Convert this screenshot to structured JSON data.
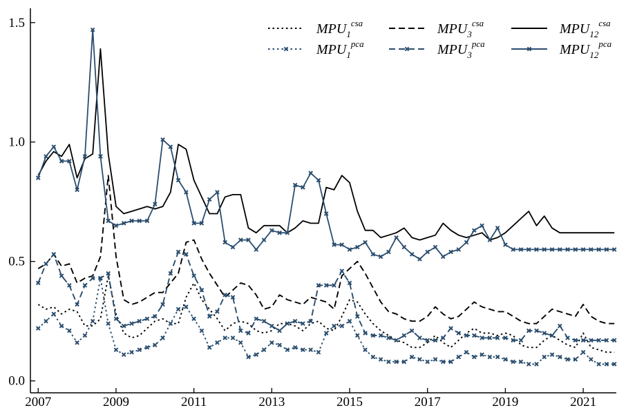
{
  "chart_data": {
    "type": "line",
    "title": "",
    "xlabel": "",
    "ylabel": "",
    "xlim": [
      2006.8,
      2021.85
    ],
    "ylim": [
      -0.05,
      1.56
    ],
    "grid": false,
    "legend_position": "top-right",
    "x_ticks": [
      2007,
      2009,
      2011,
      2013,
      2015,
      2017,
      2019,
      2021
    ],
    "y_ticks": [
      0.0,
      0.5,
      1.0,
      1.5
    ],
    "y_tick_labels": [
      "0.0",
      "0.5",
      "1.0",
      "1.5"
    ],
    "x": [
      2007.0,
      2007.2,
      2007.4,
      2007.6,
      2007.8,
      2008.0,
      2008.2,
      2008.4,
      2008.6,
      2008.8,
      2009.0,
      2009.2,
      2009.4,
      2009.6,
      2009.8,
      2010.0,
      2010.2,
      2010.4,
      2010.6,
      2010.8,
      2011.0,
      2011.2,
      2011.4,
      2011.6,
      2011.8,
      2012.0,
      2012.2,
      2012.4,
      2012.6,
      2012.8,
      2013.0,
      2013.2,
      2013.4,
      2013.6,
      2013.8,
      2014.0,
      2014.2,
      2014.4,
      2014.6,
      2014.8,
      2015.0,
      2015.2,
      2015.4,
      2015.6,
      2015.8,
      2016.0,
      2016.2,
      2016.4,
      2016.6,
      2016.8,
      2017.0,
      2017.2,
      2017.4,
      2017.6,
      2017.8,
      2018.0,
      2018.2,
      2018.4,
      2018.6,
      2018.8,
      2019.0,
      2019.2,
      2019.4,
      2019.6,
      2019.8,
      2020.0,
      2020.2,
      2020.4,
      2020.6,
      2020.8,
      2021.0,
      2021.2,
      2021.4,
      2021.6,
      2021.8
    ],
    "series": [
      {
        "name": "MPU1 csa",
        "symbol": "MPU",
        "sub": "1",
        "sup": "csa",
        "color": "#000000",
        "dash": "2.5,4",
        "marker": false,
        "values": [
          0.32,
          0.3,
          0.31,
          0.28,
          0.3,
          0.29,
          0.23,
          0.23,
          0.26,
          0.44,
          0.28,
          0.2,
          0.18,
          0.19,
          0.22,
          0.25,
          0.26,
          0.24,
          0.24,
          0.35,
          0.41,
          0.34,
          0.3,
          0.26,
          0.21,
          0.24,
          0.25,
          0.24,
          0.21,
          0.2,
          0.21,
          0.24,
          0.24,
          0.23,
          0.21,
          0.24,
          0.25,
          0.22,
          0.21,
          0.27,
          0.34,
          0.33,
          0.28,
          0.24,
          0.21,
          0.19,
          0.17,
          0.16,
          0.14,
          0.14,
          0.16,
          0.19,
          0.16,
          0.14,
          0.17,
          0.2,
          0.22,
          0.2,
          0.2,
          0.19,
          0.2,
          0.19,
          0.15,
          0.14,
          0.14,
          0.17,
          0.19,
          0.17,
          0.15,
          0.14,
          0.2,
          0.14,
          0.13,
          0.12,
          0.12
        ]
      },
      {
        "name": "MPU3 csa",
        "symbol": "MPU",
        "sub": "3",
        "sup": "csa",
        "color": "#000000",
        "dash": "9,5",
        "marker": false,
        "values": [
          0.47,
          0.49,
          0.53,
          0.48,
          0.49,
          0.41,
          0.43,
          0.44,
          0.52,
          0.86,
          0.52,
          0.34,
          0.32,
          0.33,
          0.35,
          0.37,
          0.37,
          0.41,
          0.45,
          0.58,
          0.59,
          0.51,
          0.45,
          0.4,
          0.35,
          0.38,
          0.41,
          0.4,
          0.36,
          0.3,
          0.31,
          0.36,
          0.34,
          0.33,
          0.32,
          0.35,
          0.34,
          0.33,
          0.3,
          0.44,
          0.47,
          0.5,
          0.45,
          0.39,
          0.33,
          0.29,
          0.28,
          0.26,
          0.25,
          0.25,
          0.27,
          0.31,
          0.28,
          0.26,
          0.27,
          0.3,
          0.33,
          0.31,
          0.3,
          0.29,
          0.29,
          0.27,
          0.25,
          0.24,
          0.24,
          0.27,
          0.3,
          0.29,
          0.28,
          0.27,
          0.32,
          0.27,
          0.25,
          0.24,
          0.24
        ]
      },
      {
        "name": "MPU12 csa",
        "symbol": "MPU",
        "sub": "12",
        "sup": "csa",
        "color": "#000000",
        "dash": "",
        "marker": false,
        "values": [
          0.86,
          0.92,
          0.96,
          0.94,
          0.99,
          0.85,
          0.93,
          0.95,
          1.39,
          0.95,
          0.73,
          0.7,
          0.71,
          0.72,
          0.73,
          0.72,
          0.73,
          0.79,
          0.99,
          0.97,
          0.84,
          0.77,
          0.7,
          0.7,
          0.77,
          0.78,
          0.78,
          0.64,
          0.62,
          0.65,
          0.65,
          0.65,
          0.62,
          0.64,
          0.67,
          0.66,
          0.66,
          0.81,
          0.8,
          0.86,
          0.83,
          0.71,
          0.63,
          0.63,
          0.6,
          0.61,
          0.62,
          0.64,
          0.6,
          0.59,
          0.6,
          0.61,
          0.66,
          0.63,
          0.61,
          0.6,
          0.61,
          0.62,
          0.59,
          0.6,
          0.62,
          0.65,
          0.68,
          0.71,
          0.65,
          0.69,
          0.64,
          0.62,
          0.62,
          0.62,
          0.62,
          0.62,
          0.62,
          0.62,
          0.62
        ]
      },
      {
        "name": "MPU1 pca",
        "symbol": "MPU",
        "sub": "1",
        "sup": "pca",
        "color": "#2a4d6e",
        "dash": "2.5,4",
        "marker": true,
        "values": [
          0.22,
          0.25,
          0.28,
          0.23,
          0.21,
          0.16,
          0.19,
          0.25,
          0.43,
          0.24,
          0.13,
          0.11,
          0.12,
          0.13,
          0.14,
          0.15,
          0.18,
          0.24,
          0.3,
          0.31,
          0.26,
          0.21,
          0.14,
          0.16,
          0.18,
          0.18,
          0.16,
          0.1,
          0.11,
          0.13,
          0.16,
          0.15,
          0.13,
          0.14,
          0.13,
          0.13,
          0.12,
          0.2,
          0.23,
          0.23,
          0.25,
          0.19,
          0.13,
          0.1,
          0.09,
          0.08,
          0.08,
          0.08,
          0.1,
          0.09,
          0.08,
          0.09,
          0.08,
          0.08,
          0.1,
          0.12,
          0.1,
          0.11,
          0.1,
          0.1,
          0.09,
          0.08,
          0.08,
          0.07,
          0.07,
          0.1,
          0.11,
          0.1,
          0.09,
          0.09,
          0.12,
          0.09,
          0.07,
          0.07,
          0.07
        ]
      },
      {
        "name": "MPU3 pca",
        "symbol": "MPU",
        "sub": "3",
        "sup": "pca",
        "color": "#2a4d6e",
        "dash": "9,5",
        "marker": true,
        "values": [
          0.41,
          0.49,
          0.53,
          0.44,
          0.4,
          0.32,
          0.4,
          0.43,
          0.43,
          0.45,
          0.26,
          0.23,
          0.24,
          0.25,
          0.26,
          0.27,
          0.32,
          0.45,
          0.54,
          0.53,
          0.44,
          0.38,
          0.27,
          0.29,
          0.36,
          0.35,
          0.21,
          0.2,
          0.26,
          0.25,
          0.23,
          0.21,
          0.24,
          0.25,
          0.24,
          0.25,
          0.4,
          0.4,
          0.4,
          0.46,
          0.41,
          0.27,
          0.2,
          0.19,
          0.19,
          0.18,
          0.17,
          0.19,
          0.21,
          0.18,
          0.17,
          0.17,
          0.18,
          0.22,
          0.2,
          0.19,
          0.19,
          0.18,
          0.18,
          0.18,
          0.18,
          0.17,
          0.17,
          0.21,
          0.21,
          0.2,
          0.19,
          0.23,
          0.18,
          0.17,
          0.17,
          0.17,
          0.17,
          0.17,
          0.17
        ]
      },
      {
        "name": "MPU12 pca",
        "symbol": "MPU",
        "sub": "12",
        "sup": "pca",
        "color": "#2a4d6e",
        "dash": "",
        "marker": true,
        "values": [
          0.85,
          0.94,
          0.98,
          0.92,
          0.92,
          0.8,
          0.94,
          1.47,
          0.94,
          0.67,
          0.65,
          0.66,
          0.67,
          0.67,
          0.67,
          0.74,
          1.01,
          0.98,
          0.84,
          0.79,
          0.66,
          0.66,
          0.76,
          0.79,
          0.58,
          0.56,
          0.59,
          0.59,
          0.55,
          0.59,
          0.63,
          0.62,
          0.62,
          0.82,
          0.81,
          0.87,
          0.84,
          0.7,
          0.57,
          0.57,
          0.55,
          0.56,
          0.58,
          0.53,
          0.52,
          0.54,
          0.6,
          0.56,
          0.53,
          0.51,
          0.54,
          0.56,
          0.52,
          0.54,
          0.55,
          0.58,
          0.63,
          0.65,
          0.59,
          0.64,
          0.57,
          0.55,
          0.55,
          0.55,
          0.55,
          0.55,
          0.55,
          0.55,
          0.55,
          0.55,
          0.55,
          0.55,
          0.55,
          0.55,
          0.55
        ]
      }
    ]
  }
}
